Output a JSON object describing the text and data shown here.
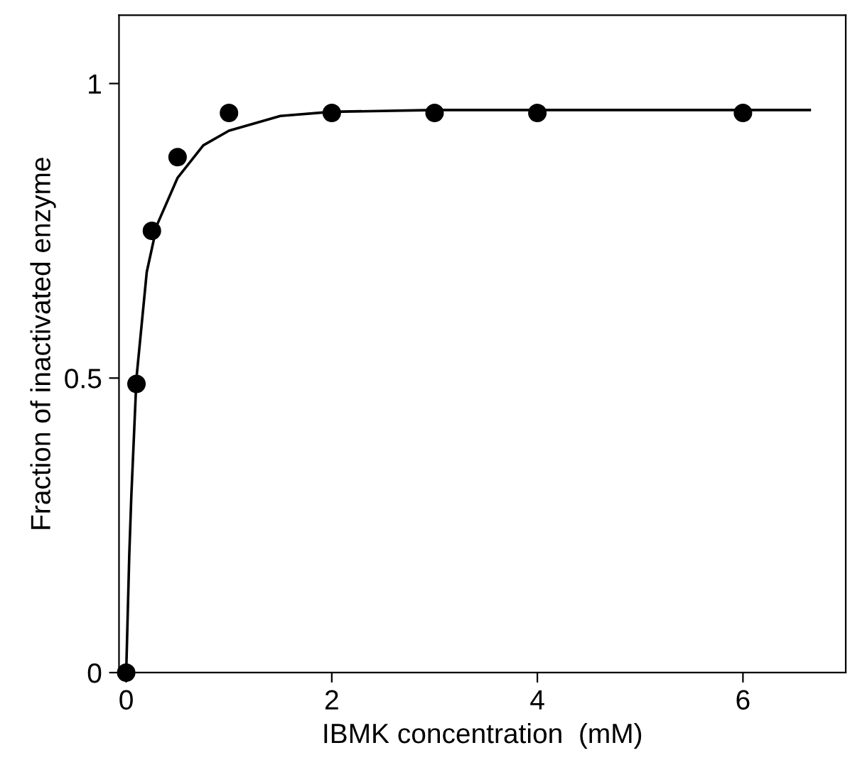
{
  "chart_data": {
    "type": "scatter",
    "xlabel": "IBMK concentration  (mM)",
    "ylabel": "Fraction of inactivated enzyme",
    "xlim": [
      -0.07,
      7.0
    ],
    "ylim": [
      0,
      1.116
    ],
    "xticks": [
      0,
      2,
      4,
      6
    ],
    "yticks": [
      0,
      0.5,
      1
    ],
    "grid": false,
    "series": [
      {
        "marker": "circle",
        "color": "#000000",
        "x": [
          0,
          0.1,
          0.25,
          0.5,
          1,
          2,
          3,
          4,
          6
        ],
        "values": [
          0,
          0.49,
          0.75,
          0.875,
          0.95,
          0.95,
          0.95,
          0.95,
          0.95
        ]
      },
      {
        "type": "line",
        "marker": "none",
        "color": "#000000",
        "x": [
          0,
          0.03,
          0.05,
          0.1,
          0.2,
          0.3,
          0.5,
          0.75,
          1,
          1.5,
          2,
          3,
          4,
          6,
          6.65
        ],
        "values": [
          0,
          0.2,
          0.3,
          0.5,
          0.68,
          0.76,
          0.84,
          0.895,
          0.92,
          0.945,
          0.952,
          0.955,
          0.955,
          0.955,
          0.955
        ]
      }
    ]
  }
}
